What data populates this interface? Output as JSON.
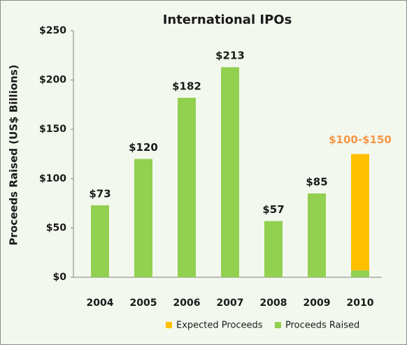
{
  "chart_data": {
    "type": "stacked_bar",
    "title": "International IPOs",
    "y_label": "Proceeds Raised (US$ Billions)",
    "categories": [
      "2004",
      "2005",
      "2006",
      "2007",
      "2008",
      "2009",
      "2010"
    ],
    "series": [
      {
        "name": "Proceeds Raised",
        "color": "#92d050",
        "values": [
          73,
          120,
          182,
          213,
          57,
          85,
          7
        ],
        "value_labels": [
          "$73",
          "$120",
          "$182",
          "$213",
          "$57",
          "$85",
          "$7"
        ]
      },
      {
        "name": "Expected Proceeds",
        "color": "#ffc000",
        "values": [
          null,
          null,
          null,
          null,
          null,
          null,
          118
        ]
      }
    ],
    "annotations": [
      {
        "text": "$100-$150",
        "color": "#f79646"
      }
    ],
    "ylim": [
      0,
      250
    ],
    "yticks": [
      {
        "value": 0,
        "label": "$0"
      },
      {
        "value": 50,
        "label": "$50"
      },
      {
        "value": 100,
        "label": "$100"
      },
      {
        "value": 150,
        "label": "$150"
      },
      {
        "value": 200,
        "label": "$200"
      },
      {
        "value": 250,
        "label": "$250"
      }
    ],
    "legend_order": [
      1,
      0
    ]
  }
}
